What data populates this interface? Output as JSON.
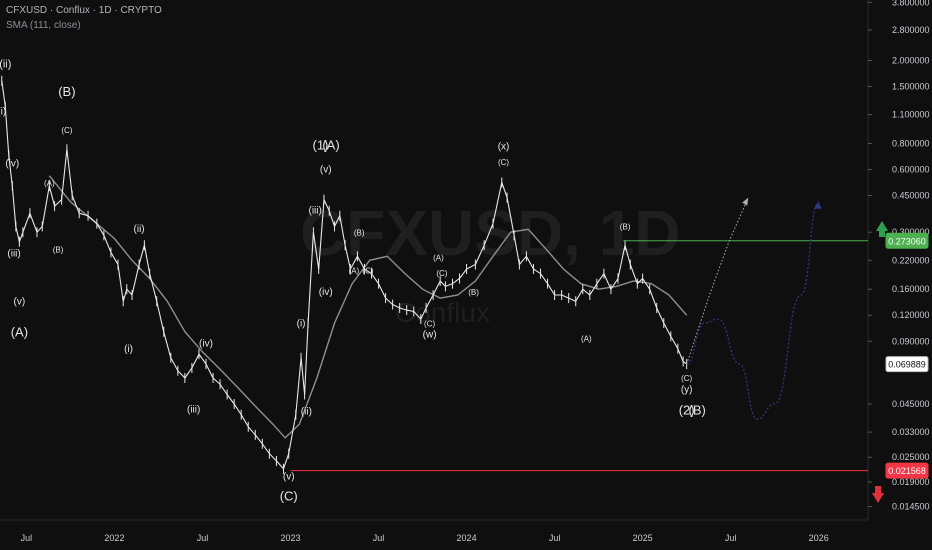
{
  "header": {
    "symbol_line": "CFXUSD · Conflux · 1D · CRYPTO",
    "indicator": "SMA (111, close)"
  },
  "watermark": {
    "symbol": "CFXUSD, 1D",
    "name": "Conflux"
  },
  "colors": {
    "background": "#0f0f0f",
    "candle": "#e8e8e8",
    "sma": "#8f8f8f",
    "resistance": "#4caf50",
    "support": "#f23645",
    "projection_up": "#b0b0b0",
    "projection_alt": "#2a3a7a",
    "current_price_bg": "#ffffff"
  },
  "chart_data": {
    "type": "line",
    "title": "",
    "log_scale": true,
    "x_range": [
      2021.35,
      2026.28
    ],
    "y_range": [
      0.0125,
      3.9
    ],
    "y_ticks": [
      {
        "value": 3.8,
        "label": "3.800000"
      },
      {
        "value": 2.8,
        "label": "2.800000"
      },
      {
        "value": 2.0,
        "label": "2.000000"
      },
      {
        "value": 1.5,
        "label": "1.500000"
      },
      {
        "value": 1.1,
        "label": "1.100000"
      },
      {
        "value": 0.8,
        "label": "0.800000"
      },
      {
        "value": 0.6,
        "label": "0.600000"
      },
      {
        "value": 0.45,
        "label": "0.450000"
      },
      {
        "value": 0.3,
        "label": "0.300000"
      },
      {
        "value": 0.22,
        "label": "0.220000"
      },
      {
        "value": 0.16,
        "label": "0.160000"
      },
      {
        "value": 0.12,
        "label": "0.120000"
      },
      {
        "value": 0.09,
        "label": "0.090000"
      },
      {
        "value": 0.045,
        "label": "0.045000"
      },
      {
        "value": 0.033,
        "label": "0.033000"
      },
      {
        "value": 0.025,
        "label": "0.025000"
      },
      {
        "value": 0.019,
        "label": "0.019000"
      },
      {
        "value": 0.0145,
        "label": "0.014500"
      }
    ],
    "x_ticks": [
      {
        "value": 2021.5,
        "label": "Jul"
      },
      {
        "value": 2022.0,
        "label": "2022"
      },
      {
        "value": 2022.5,
        "label": "Jul"
      },
      {
        "value": 2023.0,
        "label": "2023"
      },
      {
        "value": 2023.5,
        "label": "Jul"
      },
      {
        "value": 2024.0,
        "label": "2024"
      },
      {
        "value": 2024.5,
        "label": "Jul"
      },
      {
        "value": 2025.0,
        "label": "2025"
      },
      {
        "value": 2025.5,
        "label": "Jul"
      },
      {
        "value": 2026.0,
        "label": "2026"
      }
    ],
    "price_series": [
      [
        2021.36,
        1.6
      ],
      [
        2021.38,
        1.2
      ],
      [
        2021.4,
        0.7
      ],
      [
        2021.42,
        0.5
      ],
      [
        2021.44,
        0.32
      ],
      [
        2021.46,
        0.27
      ],
      [
        2021.48,
        0.3
      ],
      [
        2021.52,
        0.37
      ],
      [
        2021.56,
        0.3
      ],
      [
        2021.59,
        0.32
      ],
      [
        2021.63,
        0.5
      ],
      [
        2021.66,
        0.4
      ],
      [
        2021.7,
        0.43
      ],
      [
        2021.73,
        0.75
      ],
      [
        2021.76,
        0.45
      ],
      [
        2021.8,
        0.37
      ],
      [
        2021.85,
        0.36
      ],
      [
        2021.9,
        0.33
      ],
      [
        2021.94,
        0.29
      ],
      [
        2021.98,
        0.24
      ],
      [
        2022.02,
        0.21
      ],
      [
        2022.05,
        0.14
      ],
      [
        2022.07,
        0.16
      ],
      [
        2022.1,
        0.15
      ],
      [
        2022.14,
        0.21
      ],
      [
        2022.17,
        0.26
      ],
      [
        2022.2,
        0.19
      ],
      [
        2022.24,
        0.14
      ],
      [
        2022.28,
        0.1
      ],
      [
        2022.32,
        0.075
      ],
      [
        2022.36,
        0.065
      ],
      [
        2022.4,
        0.06
      ],
      [
        2022.44,
        0.067
      ],
      [
        2022.48,
        0.078
      ],
      [
        2022.52,
        0.07
      ],
      [
        2022.56,
        0.06
      ],
      [
        2022.6,
        0.056
      ],
      [
        2022.64,
        0.05
      ],
      [
        2022.68,
        0.045
      ],
      [
        2022.72,
        0.04
      ],
      [
        2022.76,
        0.035
      ],
      [
        2022.8,
        0.032
      ],
      [
        2022.84,
        0.029
      ],
      [
        2022.88,
        0.026
      ],
      [
        2022.92,
        0.024
      ],
      [
        2022.96,
        0.022
      ],
      [
        2022.99,
        0.026
      ],
      [
        2023.03,
        0.04
      ],
      [
        2023.06,
        0.075
      ],
      [
        2023.08,
        0.05
      ],
      [
        2023.1,
        0.11
      ],
      [
        2023.13,
        0.3
      ],
      [
        2023.16,
        0.2
      ],
      [
        2023.19,
        0.43
      ],
      [
        2023.22,
        0.38
      ],
      [
        2023.25,
        0.32
      ],
      [
        2023.28,
        0.36
      ],
      [
        2023.31,
        0.26
      ],
      [
        2023.34,
        0.2
      ],
      [
        2023.38,
        0.23
      ],
      [
        2023.42,
        0.2
      ],
      [
        2023.46,
        0.19
      ],
      [
        2023.5,
        0.17
      ],
      [
        2023.54,
        0.145
      ],
      [
        2023.58,
        0.135
      ],
      [
        2023.62,
        0.13
      ],
      [
        2023.66,
        0.127
      ],
      [
        2023.7,
        0.125
      ],
      [
        2023.74,
        0.115
      ],
      [
        2023.77,
        0.13
      ],
      [
        2023.81,
        0.15
      ],
      [
        2023.85,
        0.175
      ],
      [
        2023.88,
        0.165
      ],
      [
        2023.92,
        0.17
      ],
      [
        2023.96,
        0.18
      ],
      [
        2024.0,
        0.2
      ],
      [
        2024.05,
        0.21
      ],
      [
        2024.1,
        0.26
      ],
      [
        2024.15,
        0.33
      ],
      [
        2024.2,
        0.52
      ],
      [
        2024.23,
        0.44
      ],
      [
        2024.27,
        0.29
      ],
      [
        2024.3,
        0.21
      ],
      [
        2024.34,
        0.23
      ],
      [
        2024.38,
        0.2
      ],
      [
        2024.42,
        0.19
      ],
      [
        2024.46,
        0.17
      ],
      [
        2024.5,
        0.15
      ],
      [
        2024.54,
        0.15
      ],
      [
        2024.58,
        0.145
      ],
      [
        2024.62,
        0.14
      ],
      [
        2024.66,
        0.16
      ],
      [
        2024.7,
        0.15
      ],
      [
        2024.74,
        0.17
      ],
      [
        2024.78,
        0.19
      ],
      [
        2024.82,
        0.16
      ],
      [
        2024.86,
        0.18
      ],
      [
        2024.9,
        0.26
      ],
      [
        2024.93,
        0.21
      ],
      [
        2024.97,
        0.17
      ],
      [
        2025.0,
        0.18
      ],
      [
        2025.04,
        0.16
      ],
      [
        2025.08,
        0.13
      ],
      [
        2025.12,
        0.11
      ],
      [
        2025.16,
        0.095
      ],
      [
        2025.2,
        0.083
      ],
      [
        2025.23,
        0.072
      ],
      [
        2025.25,
        0.0699
      ]
    ],
    "sma_series": [
      [
        2021.63,
        0.56
      ],
      [
        2021.75,
        0.42
      ],
      [
        2021.9,
        0.33
      ],
      [
        2022.0,
        0.28
      ],
      [
        2022.1,
        0.22
      ],
      [
        2022.2,
        0.18
      ],
      [
        2022.3,
        0.14
      ],
      [
        2022.4,
        0.1
      ],
      [
        2022.5,
        0.08
      ],
      [
        2022.6,
        0.066
      ],
      [
        2022.7,
        0.054
      ],
      [
        2022.8,
        0.044
      ],
      [
        2022.9,
        0.036
      ],
      [
        2022.97,
        0.031
      ],
      [
        2023.05,
        0.036
      ],
      [
        2023.15,
        0.06
      ],
      [
        2023.25,
        0.11
      ],
      [
        2023.35,
        0.17
      ],
      [
        2023.45,
        0.22
      ],
      [
        2023.55,
        0.23
      ],
      [
        2023.65,
        0.19
      ],
      [
        2023.75,
        0.16
      ],
      [
        2023.85,
        0.145
      ],
      [
        2023.95,
        0.15
      ],
      [
        2024.05,
        0.175
      ],
      [
        2024.15,
        0.23
      ],
      [
        2024.25,
        0.3
      ],
      [
        2024.35,
        0.31
      ],
      [
        2024.45,
        0.25
      ],
      [
        2024.55,
        0.2
      ],
      [
        2024.65,
        0.17
      ],
      [
        2024.75,
        0.16
      ],
      [
        2024.85,
        0.165
      ],
      [
        2024.95,
        0.175
      ],
      [
        2025.05,
        0.17
      ],
      [
        2025.15,
        0.15
      ],
      [
        2025.25,
        0.12
      ]
    ],
    "resistance_line": {
      "value": 0.27306,
      "label": "0.273060",
      "from_x": 2024.89
    },
    "support_line": {
      "value": 0.021568,
      "label": "0.021568",
      "from_x": 2023.0
    },
    "current_price": {
      "value": 0.069889,
      "label": "0.069889"
    },
    "projection_bullish": [
      [
        2025.25,
        0.07
      ],
      [
        2025.38,
        0.15
      ],
      [
        2025.49,
        0.27
      ],
      [
        2025.6,
        0.44
      ]
    ],
    "projection_alt": [
      [
        2025.25,
        0.07
      ],
      [
        2025.35,
        0.11
      ],
      [
        2025.43,
        0.115
      ],
      [
        2025.55,
        0.07
      ],
      [
        2025.65,
        0.038
      ],
      [
        2025.75,
        0.045
      ],
      [
        2025.9,
        0.15
      ],
      [
        2026.0,
        0.42
      ]
    ],
    "wave_labels": [
      {
        "x": 2021.38,
        "y": 1.85,
        "text": "(ii)",
        "size": 11
      },
      {
        "x": 2021.36,
        "y": 1.1,
        "text": "(i)",
        "size": 10
      },
      {
        "x": 2021.42,
        "y": 0.62,
        "text": "(iv)",
        "size": 10
      },
      {
        "x": 2021.43,
        "y": 0.23,
        "text": "(iii)",
        "size": 10
      },
      {
        "x": 2021.46,
        "y": 0.135,
        "text": "(v)",
        "size": 10
      },
      {
        "x": 2021.46,
        "y": 0.095,
        "text": "(A)",
        "size": 13
      },
      {
        "x": 2021.73,
        "y": 1.35,
        "text": "(B)",
        "size": 13
      },
      {
        "x": 2021.73,
        "y": 0.9,
        "text": "(C)",
        "size": 8
      },
      {
        "x": 2021.63,
        "y": 0.5,
        "text": "(A)",
        "size": 8
      },
      {
        "x": 2021.68,
        "y": 0.24,
        "text": "(B)",
        "size": 8
      },
      {
        "x": 2022.14,
        "y": 0.3,
        "text": "(ii)",
        "size": 10
      },
      {
        "x": 2022.08,
        "y": 0.08,
        "text": "(i)",
        "size": 10
      },
      {
        "x": 2022.52,
        "y": 0.085,
        "text": "(iv)",
        "size": 10
      },
      {
        "x": 2022.45,
        "y": 0.041,
        "text": "(iii)",
        "size": 10
      },
      {
        "x": 2022.99,
        "y": 0.0195,
        "text": "(v)",
        "size": 10
      },
      {
        "x": 2022.99,
        "y": 0.0155,
        "text": "(C)",
        "size": 13
      },
      {
        "x": 2023.17,
        "y": 0.75,
        "text": "(1)",
        "size": 13
      },
      {
        "x": 2023.23,
        "y": 0.75,
        "text": "(A)",
        "size": 13
      },
      {
        "x": 2023.2,
        "y": 0.58,
        "text": "(v)",
        "size": 10
      },
      {
        "x": 2023.14,
        "y": 0.37,
        "text": "(iii)",
        "size": 10
      },
      {
        "x": 2023.2,
        "y": 0.15,
        "text": "(iv)",
        "size": 10
      },
      {
        "x": 2023.06,
        "y": 0.106,
        "text": "(i)",
        "size": 10
      },
      {
        "x": 2023.09,
        "y": 0.04,
        "text": "(ii)",
        "size": 10
      },
      {
        "x": 2023.39,
        "y": 0.29,
        "text": "(B)",
        "size": 8
      },
      {
        "x": 2023.36,
        "y": 0.19,
        "text": "(A)",
        "size": 8
      },
      {
        "x": 2023.44,
        "y": 0.19,
        "text": "(C)",
        "size": 8
      },
      {
        "x": 2023.79,
        "y": 0.106,
        "text": "(C)",
        "size": 8
      },
      {
        "x": 2023.79,
        "y": 0.094,
        "text": "(w)",
        "size": 10
      },
      {
        "x": 2023.84,
        "y": 0.22,
        "text": "(A)",
        "size": 8
      },
      {
        "x": 2023.86,
        "y": 0.185,
        "text": "(C)",
        "size": 8
      },
      {
        "x": 2024.04,
        "y": 0.15,
        "text": "(B)",
        "size": 8
      },
      {
        "x": 2024.21,
        "y": 0.75,
        "text": "(x)",
        "size": 10
      },
      {
        "x": 2024.21,
        "y": 0.63,
        "text": "(C)",
        "size": 8
      },
      {
        "x": 2024.9,
        "y": 0.31,
        "text": "(B)",
        "size": 8
      },
      {
        "x": 2024.68,
        "y": 0.09,
        "text": "(A)",
        "size": 8
      },
      {
        "x": 2025.25,
        "y": 0.058,
        "text": "(C)",
        "size": 8
      },
      {
        "x": 2025.25,
        "y": 0.051,
        "text": "(y)",
        "size": 10
      },
      {
        "x": 2025.25,
        "y": 0.04,
        "text": "(2)",
        "size": 13
      },
      {
        "x": 2025.31,
        "y": 0.04,
        "text": "(B)",
        "size": 13
      }
    ]
  }
}
